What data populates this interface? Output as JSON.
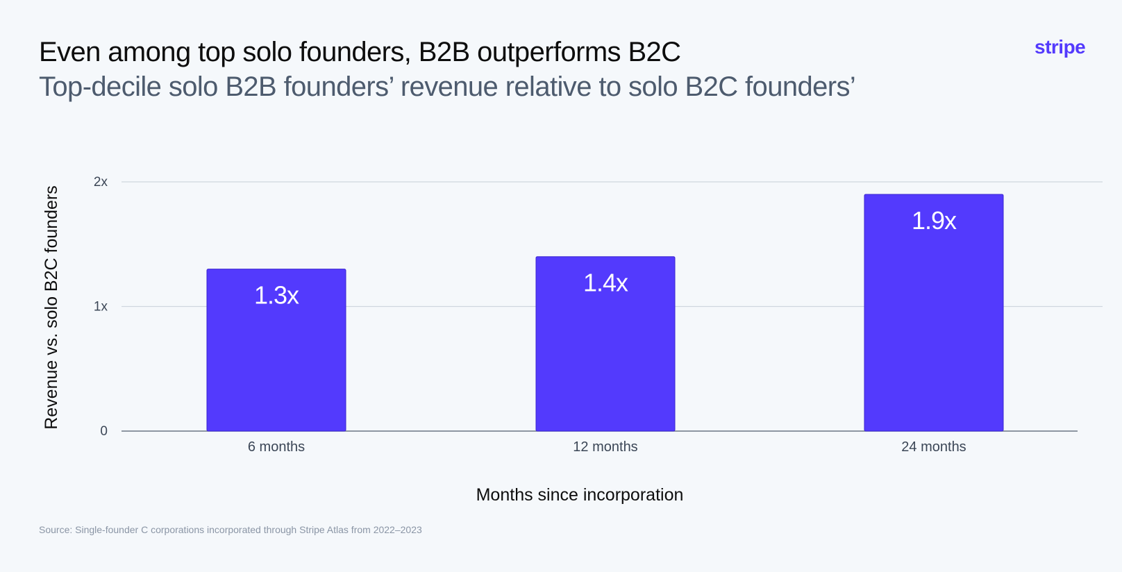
{
  "header": {
    "title": "Even among top solo founders, B2B outperforms B2C",
    "subtitle": "Top-decile solo B2B founders’ revenue relative to solo B2C founders’",
    "logo_text": "stripe"
  },
  "footer": {
    "source": "Source: Single-founder C corporations incorporated through Stripe Atlas from 2022–2023"
  },
  "colors": {
    "bar": "#533afd",
    "bar_stroke": "#3a25d0",
    "grid": "#cfd6de",
    "axis": "#6b7684"
  },
  "chart_data": {
    "type": "bar",
    "title": "Even among top solo founders, B2B outperforms B2C",
    "subtitle": "Top-decile solo B2B founders’ revenue relative to solo B2C founders’",
    "categories": [
      "6 months",
      "12 months",
      "24 months"
    ],
    "values": [
      1.3,
      1.4,
      1.9
    ],
    "data_labels": [
      "1.3x",
      "1.4x",
      "1.9x"
    ],
    "xlabel": "Months since incorporation",
    "ylabel": "Revenue vs. solo B2C founders",
    "ylim": [
      0,
      2
    ],
    "yticks": [
      0,
      1,
      2
    ],
    "ytick_labels": [
      "0",
      "1x",
      "2x"
    ],
    "grid": true,
    "legend": "none"
  }
}
